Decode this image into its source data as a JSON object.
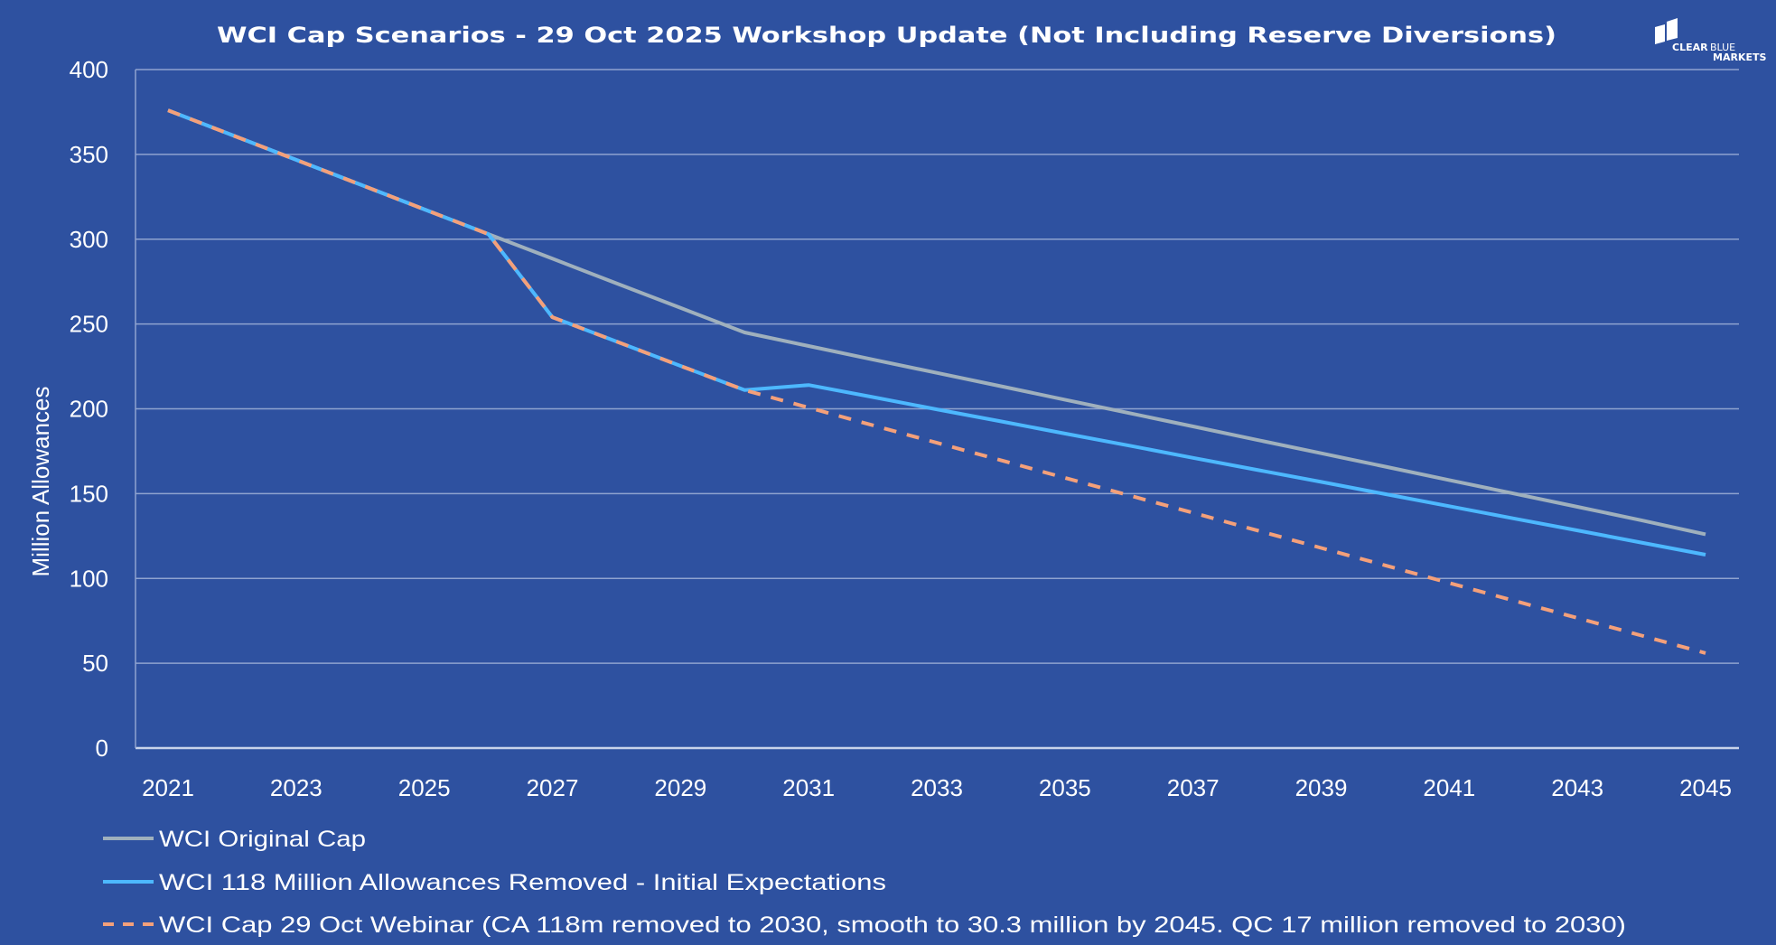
{
  "chart_data": {
    "type": "line",
    "title": "WCI Cap Scenarios - 29 Oct 2025 Workshop Update (Not Including Reserve Diversions)",
    "xlabel": "",
    "ylabel": "Million Allowances",
    "x": [
      2021,
      2022,
      2023,
      2024,
      2025,
      2026,
      2027,
      2028,
      2029,
      2030,
      2031,
      2032,
      2033,
      2034,
      2035,
      2036,
      2037,
      2038,
      2039,
      2040,
      2041,
      2042,
      2043,
      2044,
      2045
    ],
    "x_tick_labels": [
      "2021",
      "2023",
      "2025",
      "2027",
      "2029",
      "2031",
      "2033",
      "2035",
      "2037",
      "2039",
      "2041",
      "2043",
      "2045"
    ],
    "y_tick_labels": [
      "0",
      "50",
      "100",
      "150",
      "200",
      "250",
      "300",
      "350",
      "400"
    ],
    "ylim": [
      0,
      400
    ],
    "xlim": [
      2021,
      2045
    ],
    "grid": "horizontal",
    "legend_position": "bottom-left",
    "series": [
      {
        "name": "WCI Original Cap",
        "color": "#9fb0bd",
        "style": "solid",
        "values": [
          376,
          361.4,
          346.8,
          332.2,
          317.6,
          303,
          288.5,
          274,
          259.5,
          245,
          237,
          229.1,
          221.2,
          213.3,
          205.4,
          197.5,
          189.6,
          181.7,
          173.8,
          165.9,
          158,
          150.1,
          142.2,
          134.3,
          126
        ]
      },
      {
        "name": "WCI 118 Million Allowances Removed - Initial Expectations",
        "color": "#4db8ff",
        "style": "solid",
        "values": [
          376,
          361.4,
          346.8,
          332.2,
          317.6,
          303,
          254,
          239.7,
          225.3,
          211,
          214,
          206.9,
          199.7,
          192.6,
          185.4,
          178.3,
          171.1,
          164,
          156.9,
          149.7,
          142.6,
          135.4,
          128.3,
          121.1,
          114
        ]
      },
      {
        "name": "WCI Cap 29 Oct Webinar (CA 118m removed to 2030, smooth to 30.3 million by 2045. QC 17 million removed to 2030)",
        "color": "#f4a07a",
        "style": "dashed",
        "values": [
          376,
          361.4,
          346.8,
          332.2,
          317.6,
          303,
          254,
          239.7,
          225.3,
          211,
          200.7,
          190.3,
          180,
          169.7,
          159.3,
          149,
          138.7,
          128.3,
          118,
          107.7,
          97.3,
          87,
          76.7,
          66.3,
          56
        ]
      }
    ]
  },
  "logo": {
    "line1a": "CLEAR",
    "line1b": "BLUE",
    "line2": "MARKETS"
  },
  "colors": {
    "background": "#2e51a0",
    "gridline": "#8fa3cf"
  }
}
